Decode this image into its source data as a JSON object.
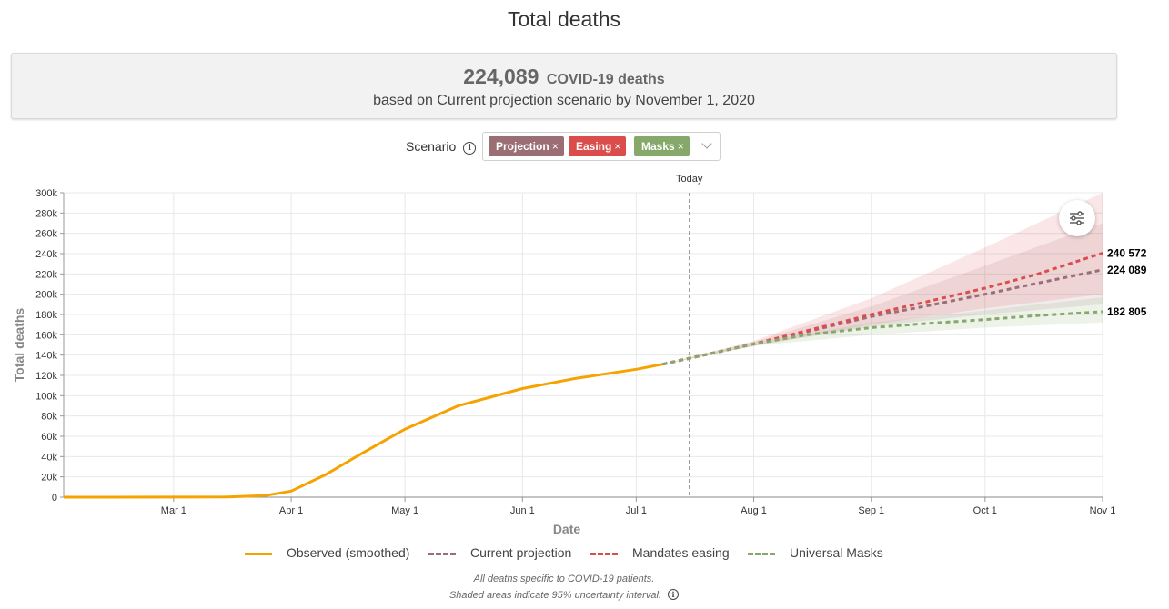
{
  "page": {
    "title": "Total deaths"
  },
  "summary": {
    "number": "224,089",
    "unit": "COVID-19 deaths",
    "subtitle": "based on Current projection scenario by November 1, 2020"
  },
  "scenario": {
    "label": "Scenario",
    "info_glyph": "i",
    "tags": [
      {
        "label": "Projection",
        "color": "#9b6e76"
      },
      {
        "label": "Easing",
        "color": "#db4c4c"
      },
      {
        "label": "Masks",
        "color": "#86a96b"
      }
    ],
    "remove_glyph": "×"
  },
  "legend": [
    {
      "label": "Observed (smoothed)",
      "color": "#f5a300",
      "style": "solid"
    },
    {
      "label": "Current projection",
      "color": "#9b6e76",
      "style": "dashed"
    },
    {
      "label": "Mandates easing",
      "color": "#db4c4c",
      "style": "dashed"
    },
    {
      "label": "Universal Masks",
      "color": "#86a96b",
      "style": "dashed"
    }
  ],
  "footnotes": {
    "line1": "All deaths specific to COVID-19 patients.",
    "line2": "Shaded areas indicate 95% uncertainty interval."
  },
  "chart_data": {
    "type": "line",
    "title": "",
    "xlabel": "Date",
    "ylabel": "Total deaths",
    "x_range": [
      "2020-02-01",
      "2020-11-01"
    ],
    "ylim": [
      0,
      300000
    ],
    "yticks": [
      0,
      20000,
      40000,
      60000,
      80000,
      100000,
      120000,
      140000,
      160000,
      180000,
      200000,
      220000,
      240000,
      260000,
      280000,
      300000
    ],
    "ytick_labels": [
      "0",
      "20k",
      "40k",
      "60k",
      "80k",
      "100k",
      "120k",
      "140k",
      "160k",
      "180k",
      "200k",
      "220k",
      "240k",
      "260k",
      "280k",
      "300k"
    ],
    "xticks": [
      "2020-03-01",
      "2020-04-01",
      "2020-05-01",
      "2020-06-01",
      "2020-07-01",
      "2020-08-01",
      "2020-09-01",
      "2020-10-01",
      "2020-11-01"
    ],
    "xtick_labels": [
      "Mar 1",
      "Apr 1",
      "May 1",
      "Jun 1",
      "Jul 1",
      "Aug 1",
      "Sep 1",
      "Oct 1",
      "Nov 1"
    ],
    "grid": true,
    "today": {
      "date": "2020-07-15",
      "label": "Today"
    },
    "series": [
      {
        "name": "Observed (smoothed)",
        "color": "#f5a300",
        "style": "solid",
        "points": [
          [
            "2020-02-01",
            0
          ],
          [
            "2020-03-01",
            100
          ],
          [
            "2020-03-15",
            200
          ],
          [
            "2020-03-25",
            1500
          ],
          [
            "2020-04-01",
            6000
          ],
          [
            "2020-04-10",
            22000
          ],
          [
            "2020-04-20",
            44000
          ],
          [
            "2020-05-01",
            67000
          ],
          [
            "2020-05-15",
            90000
          ],
          [
            "2020-06-01",
            107000
          ],
          [
            "2020-06-15",
            117000
          ],
          [
            "2020-07-01",
            126000
          ],
          [
            "2020-07-08",
            131000
          ]
        ]
      },
      {
        "name": "Current projection",
        "color": "#9b6e76",
        "style": "dashed",
        "points": [
          [
            "2020-07-08",
            131000
          ],
          [
            "2020-07-20",
            141000
          ],
          [
            "2020-08-01",
            151000
          ],
          [
            "2020-08-15",
            163000
          ],
          [
            "2020-09-01",
            178000
          ],
          [
            "2020-09-15",
            188000
          ],
          [
            "2020-10-01",
            200000
          ],
          [
            "2020-10-15",
            211000
          ],
          [
            "2020-11-01",
            224089
          ]
        ],
        "upper": [
          [
            "2020-07-08",
            131000
          ],
          [
            "2020-08-01",
            153000
          ],
          [
            "2020-09-01",
            188000
          ],
          [
            "2020-10-01",
            228000
          ],
          [
            "2020-11-01",
            270000
          ]
        ],
        "lower": [
          [
            "2020-07-08",
            131000
          ],
          [
            "2020-08-01",
            149000
          ],
          [
            "2020-09-01",
            168000
          ],
          [
            "2020-10-01",
            180000
          ],
          [
            "2020-11-01",
            190000
          ]
        ],
        "end_label": "224 089"
      },
      {
        "name": "Mandates easing",
        "color": "#db4c4c",
        "style": "dashed",
        "points": [
          [
            "2020-07-08",
            131000
          ],
          [
            "2020-07-20",
            141000
          ],
          [
            "2020-08-01",
            151000
          ],
          [
            "2020-08-15",
            164000
          ],
          [
            "2020-09-01",
            180000
          ],
          [
            "2020-09-15",
            192000
          ],
          [
            "2020-10-01",
            206000
          ],
          [
            "2020-10-15",
            220000
          ],
          [
            "2020-11-01",
            240572
          ]
        ],
        "upper": [
          [
            "2020-07-08",
            131000
          ],
          [
            "2020-08-01",
            154000
          ],
          [
            "2020-09-01",
            196000
          ],
          [
            "2020-10-01",
            246000
          ],
          [
            "2020-11-01",
            300000
          ]
        ],
        "lower": [
          [
            "2020-07-08",
            131000
          ],
          [
            "2020-08-01",
            149000
          ],
          [
            "2020-09-01",
            170000
          ],
          [
            "2020-10-01",
            186000
          ],
          [
            "2020-11-01",
            200000
          ]
        ],
        "end_label": "240 572"
      },
      {
        "name": "Universal Masks",
        "color": "#86a96b",
        "style": "dashed",
        "points": [
          [
            "2020-07-08",
            131000
          ],
          [
            "2020-07-20",
            141000
          ],
          [
            "2020-08-01",
            151000
          ],
          [
            "2020-08-15",
            160000
          ],
          [
            "2020-09-01",
            167000
          ],
          [
            "2020-09-15",
            171000
          ],
          [
            "2020-10-01",
            175000
          ],
          [
            "2020-10-15",
            179000
          ],
          [
            "2020-11-01",
            182805
          ]
        ],
        "upper": [
          [
            "2020-07-08",
            131000
          ],
          [
            "2020-08-01",
            152000
          ],
          [
            "2020-09-01",
            172000
          ],
          [
            "2020-10-01",
            184000
          ],
          [
            "2020-11-01",
            197000
          ]
        ],
        "lower": [
          [
            "2020-07-08",
            131000
          ],
          [
            "2020-08-01",
            149000
          ],
          [
            "2020-09-01",
            160000
          ],
          [
            "2020-10-01",
            167000
          ],
          [
            "2020-11-01",
            172000
          ]
        ],
        "end_label": "182 805"
      }
    ]
  }
}
